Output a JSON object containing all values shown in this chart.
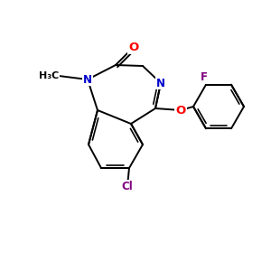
{
  "background_color": "#ffffff",
  "bond_color": "#000000",
  "atom_colors": {
    "O": "#ff0000",
    "N": "#0000cc",
    "Cl": "#800080",
    "F": "#800080",
    "O_ring": "#ff0000"
  },
  "bond_lw": 1.4,
  "font_size_atom": 8.5,
  "figsize": [
    3.0,
    3.0
  ],
  "dpi": 100
}
